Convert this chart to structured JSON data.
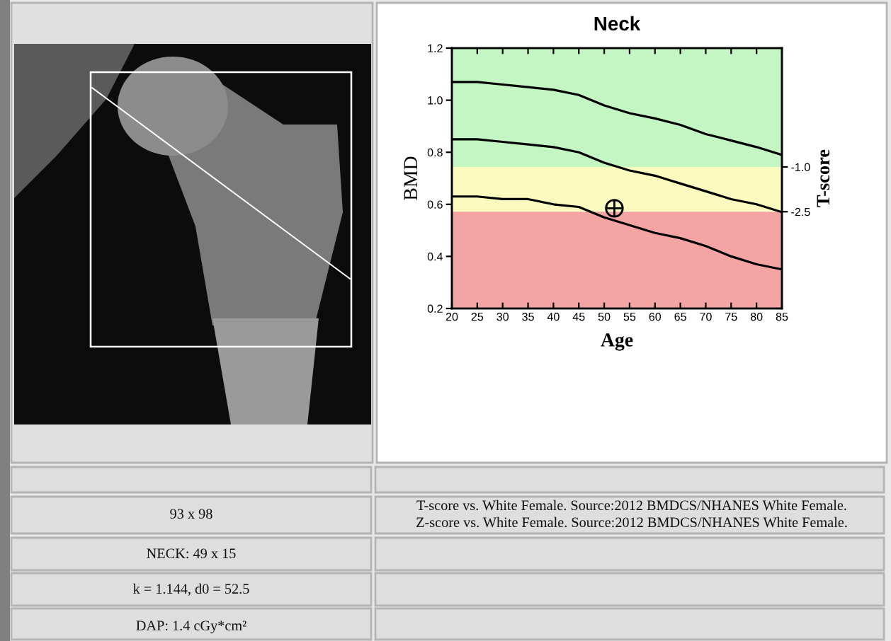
{
  "chart_data": {
    "type": "line",
    "title": "Neck",
    "xlabel": "Age",
    "ylabel": "BMD",
    "y2label": "T-score",
    "x": [
      20,
      25,
      30,
      35,
      40,
      45,
      50,
      55,
      60,
      65,
      70,
      75,
      80,
      85
    ],
    "series": [
      {
        "color": "#000000",
        "values": [
          1.07,
          1.07,
          1.06,
          1.05,
          1.04,
          1.02,
          0.98,
          0.95,
          0.93,
          0.905,
          0.87,
          0.845,
          0.82,
          0.79
        ]
      },
      {
        "color": "#000000",
        "values": [
          0.85,
          0.85,
          0.84,
          0.83,
          0.82,
          0.8,
          0.76,
          0.73,
          0.71,
          0.68,
          0.65,
          0.62,
          0.6,
          0.57
        ]
      },
      {
        "color": "#000000",
        "values": [
          0.63,
          0.63,
          0.62,
          0.62,
          0.6,
          0.59,
          0.55,
          0.52,
          0.49,
          0.47,
          0.44,
          0.4,
          0.37,
          0.35
        ]
      },
      {
        "type": "scatter",
        "color": "#000000",
        "x": [
          52
        ],
        "values": [
          0.585
        ],
        "marker": "cross"
      }
    ],
    "marker": "none",
    "line_style": "solid",
    "xlim": [
      20,
      85
    ],
    "xticks": [
      20,
      25,
      30,
      35,
      40,
      45,
      50,
      55,
      60,
      65,
      70,
      75,
      80,
      85
    ],
    "ylim": [
      0.2,
      1.2
    ],
    "yticks": [
      0.2,
      0.4,
      0.6,
      0.8,
      {
        "value": 1,
        "label": "1.0"
      },
      1.2
    ],
    "y2lim": [
      -5.74,
      2.98
    ],
    "y2ticks": [
      {
        "value": -1,
        "label": "-1.0"
      },
      {
        "value": -2.5,
        "label": "-2.5"
      }
    ],
    "bands": [
      {
        "axis": "y2",
        "from": -1,
        "to": 2.98,
        "color": "#c3f6c3"
      },
      {
        "axis": "y2",
        "from": -2.5,
        "to": -1,
        "color": "#fbfbc0"
      },
      {
        "axis": "y2",
        "from": -5.74,
        "to": -2.5,
        "color": "#f5a4a4"
      }
    ],
    "annotations": [
      "93 x 98",
      "T-score vs. White Female. Source:2012 BMDCS/NHANES White Female.",
      "Z-score vs. White Female. Source:2012 BMDCS/NHANES White Female.",
      "NECK: 49 x 15",
      "k = 1.144, d0 = 52.5",
      "DAP: 1.4 cGy*cm²"
    ]
  }
}
